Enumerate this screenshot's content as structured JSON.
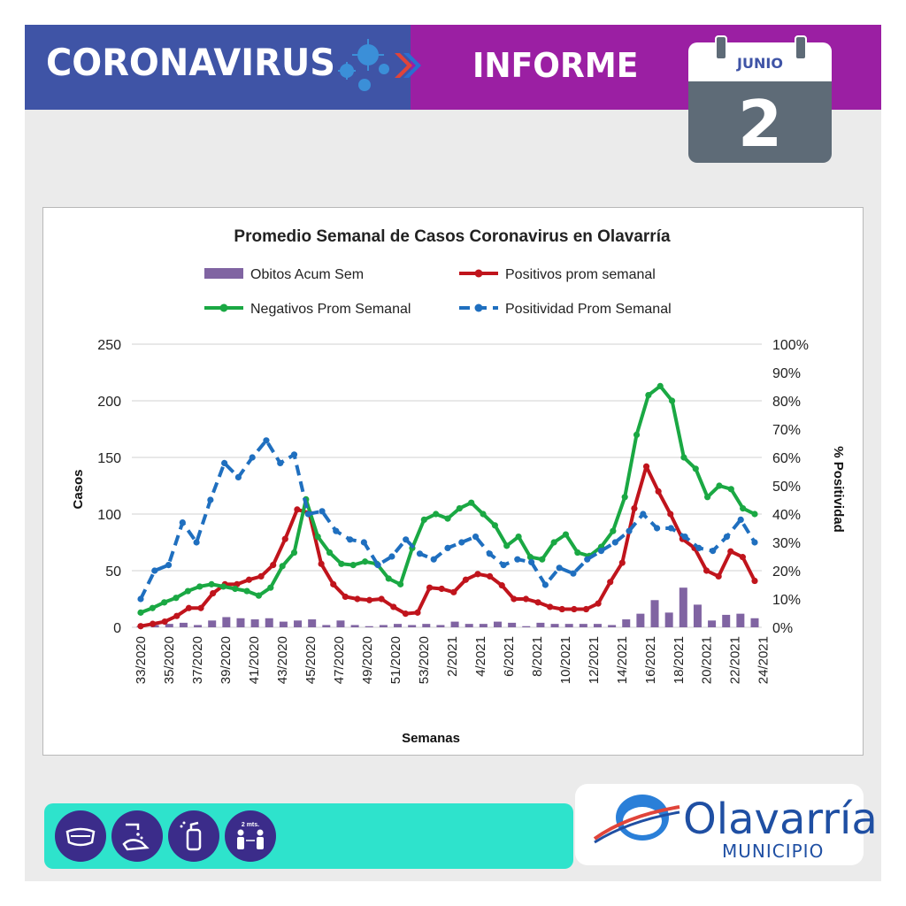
{
  "header": {
    "title": "CORONAVIRUS",
    "subtitle": "INFORME",
    "calendar_month": "JUNIO",
    "calendar_day": "2",
    "colors": {
      "left": "#3f54a6",
      "right": "#9b1fa3"
    }
  },
  "footer": {
    "icons": [
      "mask-icon",
      "handwash-icon",
      "sanitizer-icon",
      "distance-icon"
    ],
    "distance_label": "2 mts.",
    "logo_text": "Olavarría",
    "logo_sub": "MUNICIPIO"
  },
  "chart_data": {
    "type": "line",
    "title": "Promedio Semanal de Casos Coronavirus en Olavarría",
    "xlabel": "Semanas",
    "ylabel": "Casos",
    "y2label": "% Positividad",
    "ylim": [
      0,
      250
    ],
    "y2lim": [
      0,
      100
    ],
    "yticks": [
      "0",
      "50",
      "100",
      "150",
      "200",
      "250"
    ],
    "y2ticks": [
      "0%",
      "10%",
      "20%",
      "30%",
      "40%",
      "50%",
      "60%",
      "70%",
      "80%",
      "90%",
      "100%"
    ],
    "grid": true,
    "legend_position": "top",
    "x_tick_labels": [
      "33/2020",
      "35/2020",
      "37/2020",
      "39/2020",
      "41/2020",
      "43/2020",
      "45/2020",
      "47/2020",
      "49/2020",
      "51/2020",
      "53/2020",
      "2/2021",
      "4/2021",
      "6/2021",
      "8/2021",
      "10/2021",
      "12/2021",
      "14/2021",
      "16/2021",
      "18/2021",
      "20/2021",
      "22/2021",
      "24/2021"
    ],
    "series": [
      {
        "name": "Obitos Acum Sem",
        "kind": "bar",
        "axis": "left",
        "color": "#8064a2",
        "values": [
          1,
          2,
          3,
          4,
          2,
          6,
          9,
          8,
          7,
          8,
          5,
          6,
          7,
          2,
          6,
          2,
          1,
          2,
          3,
          2,
          3,
          2,
          5,
          3,
          3,
          5,
          4,
          1,
          4,
          3,
          3,
          3,
          3,
          2,
          7,
          12,
          24,
          13,
          35,
          20,
          6,
          11,
          12,
          8
        ]
      },
      {
        "name": "Positivos prom semanal",
        "kind": "line",
        "axis": "left",
        "color": "#c0141c",
        "values": [
          1,
          3,
          5,
          10,
          17,
          17,
          30,
          38,
          38,
          42,
          45,
          55,
          78,
          104,
          101,
          56,
          38,
          27,
          25,
          24,
          25,
          18,
          12,
          13,
          35,
          34,
          31,
          42,
          47,
          45,
          37,
          25,
          25,
          22,
          18,
          16,
          16,
          16,
          21,
          40,
          57,
          105,
          142,
          120,
          100,
          78,
          70,
          50,
          45,
          67,
          62,
          41
        ]
      },
      {
        "name": "Negativos Prom Semanal",
        "kind": "line",
        "axis": "left",
        "color": "#1aa843",
        "values": [
          13,
          17,
          22,
          26,
          32,
          36,
          38,
          36,
          34,
          32,
          28,
          35,
          54,
          66,
          113,
          80,
          66,
          56,
          55,
          58,
          56,
          43,
          38,
          70,
          95,
          100,
          96,
          105,
          110,
          100,
          90,
          72,
          80,
          62,
          60,
          75,
          82,
          66,
          63,
          71,
          85,
          115,
          170,
          205,
          213,
          200,
          150,
          140,
          115,
          125,
          122,
          105,
          100
        ]
      },
      {
        "name": "Positividad Prom Semanal",
        "kind": "line-dashed",
        "axis": "right",
        "color": "#1f6fbf",
        "values": [
          10,
          20,
          22,
          37,
          30,
          45,
          58,
          53,
          60,
          66,
          58,
          61,
          40,
          41,
          34,
          31,
          30,
          22,
          25,
          31,
          26,
          24,
          28,
          30,
          32,
          26,
          22,
          24,
          23,
          15,
          21,
          19,
          24,
          27,
          30,
          34,
          40,
          35,
          35,
          32,
          28,
          27,
          32,
          38,
          30
        ]
      }
    ]
  }
}
